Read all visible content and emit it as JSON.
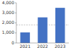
{
  "chart_data": {
    "type": "bar",
    "categories": [
      "2021",
      "2022",
      "2023"
    ],
    "values": [
      1050,
      2550,
      3500
    ],
    "color": "#4472c4",
    "ylim": [
      0,
      4000
    ],
    "yticks": [
      0,
      {
        "value": 1000,
        "label": "1,000"
      },
      {
        "value": 2000,
        "label": "2,000"
      },
      {
        "value": 3000,
        "label": "3,000"
      },
      {
        "value": 4000,
        "label": "4,000"
      }
    ],
    "reference_line": 1800,
    "grid": false
  }
}
